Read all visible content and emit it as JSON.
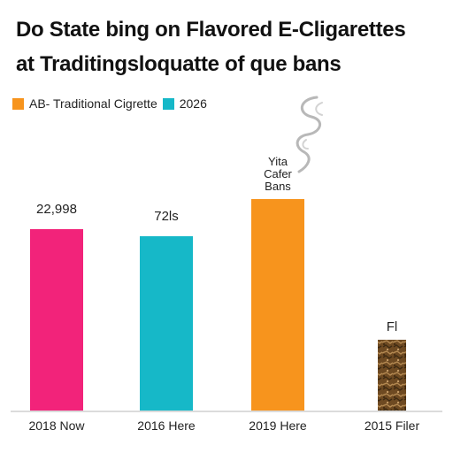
{
  "chart_data": {
    "type": "bar",
    "title": [
      "Do State bing on Flavored E-Cligarettes",
      "at Traditingsloquatte of que bans"
    ],
    "legend": {
      "placement": "top-left",
      "entries": [
        {
          "label": "AB- Traditional Cigrette",
          "color": "#f7941d"
        },
        {
          "label": "2026",
          "color": "#16b8c8"
        }
      ]
    },
    "categories": [
      "2018 Now",
      "2016 Here",
      "2019 Here",
      "2015 Filer"
    ],
    "values": [
      205,
      197,
      239,
      80
    ],
    "colors": [
      "#f2237a",
      "#16b8c8",
      "#f7941d",
      "#8b6a3e"
    ],
    "data_labels": [
      "22,998",
      "72ls",
      "Yita\nCafer\nBans",
      "Fl"
    ],
    "ylim": [
      0,
      330
    ],
    "grid": false
  }
}
